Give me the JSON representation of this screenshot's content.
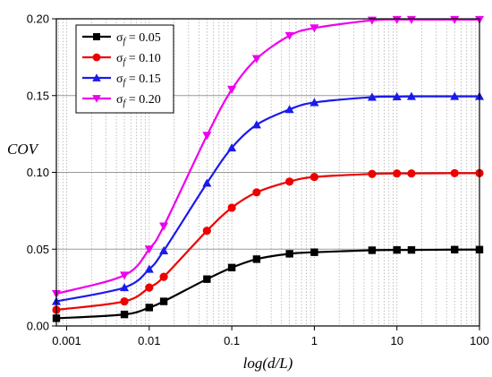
{
  "chart_data": {
    "type": "line",
    "xlabel": "log(d/L)",
    "ylabel": "COV",
    "xscale": "log",
    "xlim": [
      0.00075,
      100
    ],
    "ylim": [
      0,
      0.2
    ],
    "x_ticks": [
      {
        "value": 0.001,
        "label": "0.001"
      },
      {
        "value": 0.01,
        "label": "0.01"
      },
      {
        "value": 0.1,
        "label": "0.1"
      },
      {
        "value": 1,
        "label": "1"
      },
      {
        "value": 10,
        "label": "10"
      },
      {
        "value": 100,
        "label": "100"
      }
    ],
    "y_ticks": [
      {
        "value": 0.0,
        "label": "0.00"
      },
      {
        "value": 0.05,
        "label": "0.05"
      },
      {
        "value": 0.1,
        "label": "0.10"
      },
      {
        "value": 0.15,
        "label": "0.15"
      },
      {
        "value": 0.2,
        "label": "0.20"
      }
    ],
    "grid": true,
    "legend_position": "top-left",
    "x": [
      0.00075,
      0.005,
      0.01,
      0.015,
      0.05,
      0.1,
      0.2,
      0.5,
      1,
      5,
      10,
      15,
      50,
      100
    ],
    "series": [
      {
        "name_symbol": "σ",
        "name_sub": "f",
        "name_rest": " = 0.05",
        "color": "#000000",
        "marker": "square",
        "values": [
          0.005,
          0.0075,
          0.012,
          0.016,
          0.0305,
          0.038,
          0.0435,
          0.047,
          0.048,
          0.0493,
          0.0495,
          0.0495,
          0.0497,
          0.0497
        ]
      },
      {
        "name_symbol": "σ",
        "name_sub": "f",
        "name_rest": " = 0.10",
        "color": "#ee0000",
        "marker": "circle",
        "values": [
          0.0105,
          0.016,
          0.025,
          0.032,
          0.062,
          0.077,
          0.087,
          0.094,
          0.097,
          0.099,
          0.0993,
          0.0993,
          0.0995,
          0.0995
        ]
      },
      {
        "name_symbol": "σ",
        "name_sub": "f",
        "name_rest": " = 0.15",
        "color": "#1a1aee",
        "marker": "triangle-up",
        "values": [
          0.016,
          0.025,
          0.037,
          0.049,
          0.093,
          0.116,
          0.131,
          0.141,
          0.1455,
          0.149,
          0.1493,
          0.1495,
          0.1495,
          0.1495
        ]
      },
      {
        "name_symbol": "σ",
        "name_sub": "f",
        "name_rest": " = 0.20",
        "color": "#ee00ee",
        "marker": "triangle-down",
        "values": [
          0.021,
          0.033,
          0.05,
          0.065,
          0.124,
          0.154,
          0.174,
          0.189,
          0.194,
          0.199,
          0.1995,
          0.1995,
          0.1995,
          0.1995
        ]
      }
    ]
  }
}
